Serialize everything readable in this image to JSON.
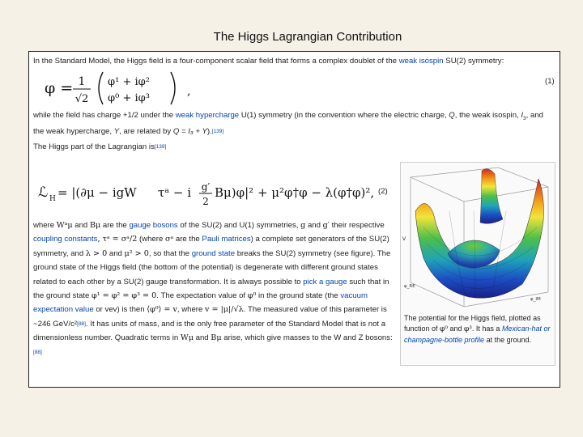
{
  "slide": {
    "title": "The Higgs Lagrangian Contribution"
  },
  "intro": {
    "t1": "In the Standard Model, the Higgs field is a four-component scalar field that forms a complex doublet of the ",
    "link_weak_isospin": "weak isospin",
    "t2": " SU(2) symmetry:"
  },
  "eq1": {
    "lhs": "φ =",
    "frac_num": "1",
    "frac_den": "√2",
    "row1": "φ¹ + iφ²",
    "row2": "φ⁰ + iφ³",
    "comma": ",",
    "number": "(1)"
  },
  "para2": {
    "t1": "while the field has charge +1/2 under the ",
    "link_hypercharge": "weak hypercharge",
    "t2": " U(1) symmetry (in the convention where the electric charge, ",
    "q": "Q",
    "t3": ", the weak isospin, ",
    "i3": "I",
    "i3sub": "3",
    "t4": ", and the weak hypercharge, ",
    "y": "Y",
    "t5": ", are related by ",
    "formula": "Q = I₃ + Y",
    "t6": ").",
    "ref": "[139]"
  },
  "para3": {
    "t1": "The Higgs part of the Lagrangian is",
    "ref": "[139]"
  },
  "eq2": {
    "lhs": "ℒ",
    "lhs_sub": "H",
    "body": " = |(∂μ − igW",
    "body2": "τᵃ − i",
    "g_prime": "g′",
    "two": "2",
    "body3": "Bμ)φ|² + μ²φ†φ − λ(φ†φ)²,",
    "number": "(2)"
  },
  "para4": {
    "where": "where ",
    "w": "Wᵃμ",
    "and": " and ",
    "b": "Bμ",
    "are": " are the ",
    "link_gauge_bosons": "gauge bosons",
    "t1": " of the SU(2) and U(1) symmetries, ",
    "g": "g",
    "and2": " and ",
    "gp": "g′",
    "their": "their respective ",
    "link_coupling": "coupling constants",
    "tau": ", τᵃ = σᵃ/2",
    "where2": " (where ",
    "sigma": "σᵃ",
    "are2": " are the ",
    "link_pauli": "Pauli matrices",
    "t2": ") a complete set generators of the SU(2) symmetry, and ",
    "lam": "λ > 0",
    "and3": " and ",
    "mu": "μ² > 0",
    "t3": ", so that the ",
    "link_ground_state": "ground state",
    "t4": " breaks the SU(2) symmetry (see figure). The ground state of the Higgs field (the bottom of the potential) is degenerate with different ground states related to each other by a SU(2) gauge transformation. It is always possible to ",
    "link_pick_gauge": "pick a gauge",
    "t5": " such that in the ground state ",
    "phi_eq": "φ¹ = φ² = φ³ = 0",
    "t6": ". The expectation value of ",
    "phi0": "φ⁰",
    "t7": " in the ground state (the ",
    "link_vev": "vacuum expectation value",
    "t8": " or vev) is then ",
    "vev_eq": "⟨φ⁰⟩ = v",
    "where3": ", where ",
    "v_eq": "v = |μ|/√λ",
    "t9": ". The measured value of this parameter is ~246 GeV/c²",
    "ref1": "[88]",
    "t10": ". It has units of mass, and is the only free parameter of the Standard Model that is not a dimensionless number. Quadratic terms in ",
    "w2": "Wμ",
    "and4": " and ",
    "b2": "Bμ",
    "t11": " arise, which give masses to the W and Z bosons:",
    "ref2": "[88]"
  },
  "figure": {
    "axis_z": "V",
    "axis_x": "φ_RE",
    "axis_y": "φ_IM",
    "caption_t1": "The potential for the Higgs field, plotted as function of ",
    "caption_phi0": "φ⁰",
    "caption_and": " and ",
    "caption_phi3": "φ³",
    "caption_t2": ". It has a ",
    "caption_link": "Mexican-hat or champagne-bottle profile",
    "caption_t3": " at the ground."
  }
}
